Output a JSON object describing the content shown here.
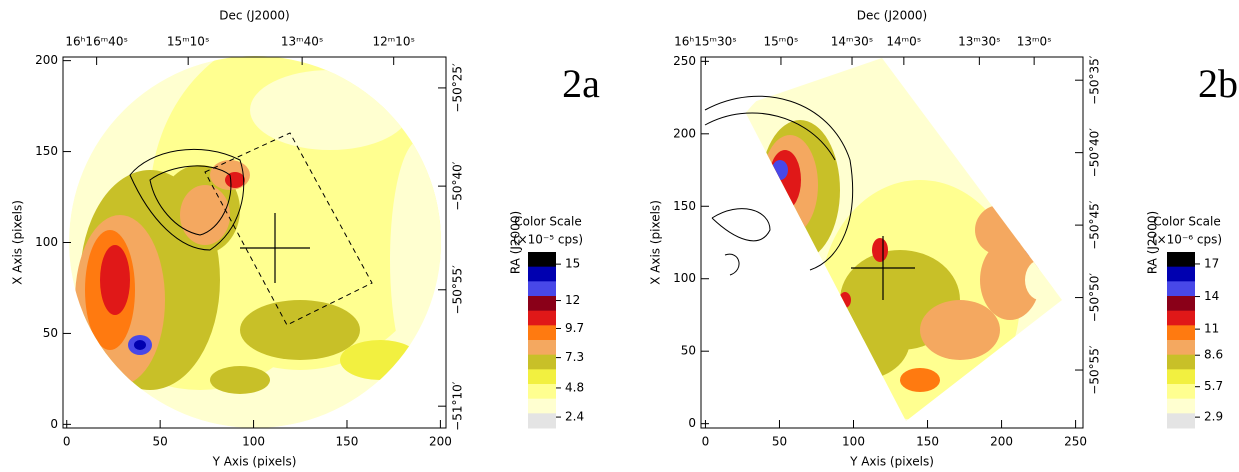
{
  "chart_data": [
    {
      "type": "image",
      "label": "2a",
      "xlabel": "Y Axis (pixels)",
      "ylabel": "X Axis (pixels)",
      "x2label": "Dec (J2000)",
      "y2label": "RA (J2000)",
      "xlim": [
        -2,
        203
      ],
      "ylim": [
        -2,
        202
      ],
      "xticks": [
        0,
        50,
        100,
        150,
        200
      ],
      "yticks": [
        0,
        50,
        100,
        150,
        200
      ],
      "x2ticks": [
        {
          "value": 16,
          "label": "16ʰ16ᵐ40ˢ"
        },
        {
          "value": 65,
          "label": "15ᵐ10ˢ"
        },
        {
          "value": 126,
          "label": "13ᵐ40ˢ"
        },
        {
          "value": 175,
          "label": "12ᵐ10ˢ"
        }
      ],
      "y2ticks": [
        {
          "value": 185,
          "label": "−50°25′"
        },
        {
          "value": 131,
          "label": "−50°40′"
        },
        {
          "value": 74,
          "label": "−50°55′"
        },
        {
          "value": 10,
          "label": "−51°10′"
        }
      ],
      "colorbar": {
        "title": "Color Scale",
        "unit": "(×10⁻⁵ cps)",
        "lim": [
          1.5,
          16
        ],
        "ticks": [
          15,
          12,
          9.7,
          7.3,
          4.8,
          2.4
        ]
      },
      "colormap": [
        "#000000",
        "#0000b0",
        "#4848e8",
        "#8a0018",
        "#e01818",
        "#ff7a10",
        "#f4a860",
        "#c8c028",
        "#f2f040",
        "#ffff90",
        "#ffffd0",
        "#e4e4e4"
      ]
    },
    {
      "type": "image",
      "label": "2b",
      "xlabel": "Y Axis (pixels)",
      "ylabel": "X Axis (pixels)",
      "x2label": "Dec (J2000)",
      "y2label": "RA (J2000)",
      "xlim": [
        -3,
        255
      ],
      "ylim": [
        -3,
        253
      ],
      "xticks": [
        0,
        50,
        100,
        150,
        200,
        250
      ],
      "yticks": [
        0,
        50,
        100,
        150,
        200,
        250
      ],
      "x2ticks": [
        {
          "value": 0,
          "label": "16ʰ15ᵐ30ˢ"
        },
        {
          "value": 51,
          "label": "15ᵐ0ˢ"
        },
        {
          "value": 99,
          "label": "14ᵐ30ˢ"
        },
        {
          "value": 134,
          "label": "14ᵐ0ˢ"
        },
        {
          "value": 185,
          "label": "13ᵐ30ˢ"
        },
        {
          "value": 222,
          "label": "13ᵐ0ˢ"
        }
      ],
      "y2ticks": [
        {
          "value": 237,
          "label": "−50°35′"
        },
        {
          "value": 187,
          "label": "−50°40′"
        },
        {
          "value": 137,
          "label": "−50°45′"
        },
        {
          "value": 87,
          "label": "−50°50′"
        },
        {
          "value": 37,
          "label": "−50°55′"
        }
      ],
      "colorbar": {
        "title": "Color Scale",
        "unit": "(×10⁻⁶ cps)",
        "lim": [
          1.9,
          18.1
        ],
        "ticks": [
          17,
          14,
          11,
          8.6,
          5.7,
          2.9
        ]
      },
      "colormap": [
        "#000000",
        "#0000b0",
        "#4848e8",
        "#8a0018",
        "#e01818",
        "#ff7a10",
        "#f4a860",
        "#c8c028",
        "#f2f040",
        "#ffff90",
        "#ffffd0",
        "#e4e4e4"
      ]
    }
  ]
}
